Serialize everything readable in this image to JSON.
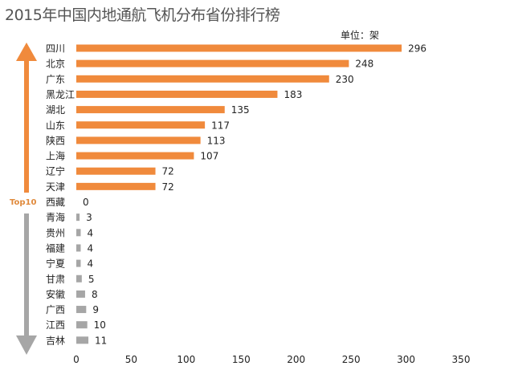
{
  "title": "2015年中国内地通航飞机分布省份排行榜",
  "unit_label": "单位：架",
  "top_label": "Top10",
  "colors": {
    "top": "#f08a3c",
    "rest": "#a6a6a6"
  },
  "chart_data": {
    "type": "bar",
    "orientation": "horizontal",
    "title": "2015年中国内地通航飞机分布省份排行榜",
    "unit": "单位：架",
    "categories": [
      "四川",
      "北京",
      "广东",
      "黑龙江",
      "湖北",
      "山东",
      "陕西",
      "上海",
      "辽宁",
      "天津",
      "西藏",
      "青海",
      "贵州",
      "福建",
      "宁夏",
      "甘肃",
      "安徽",
      "广西",
      "江西",
      "吉林"
    ],
    "values": [
      296,
      248,
      230,
      183,
      135,
      117,
      113,
      107,
      72,
      72,
      0,
      3,
      4,
      4,
      4,
      5,
      8,
      9,
      10,
      11
    ],
    "xlim": [
      0,
      350
    ],
    "xticks": [
      0,
      50,
      100,
      150,
      200,
      250,
      300,
      350
    ],
    "top_n": 10,
    "grid": false
  }
}
